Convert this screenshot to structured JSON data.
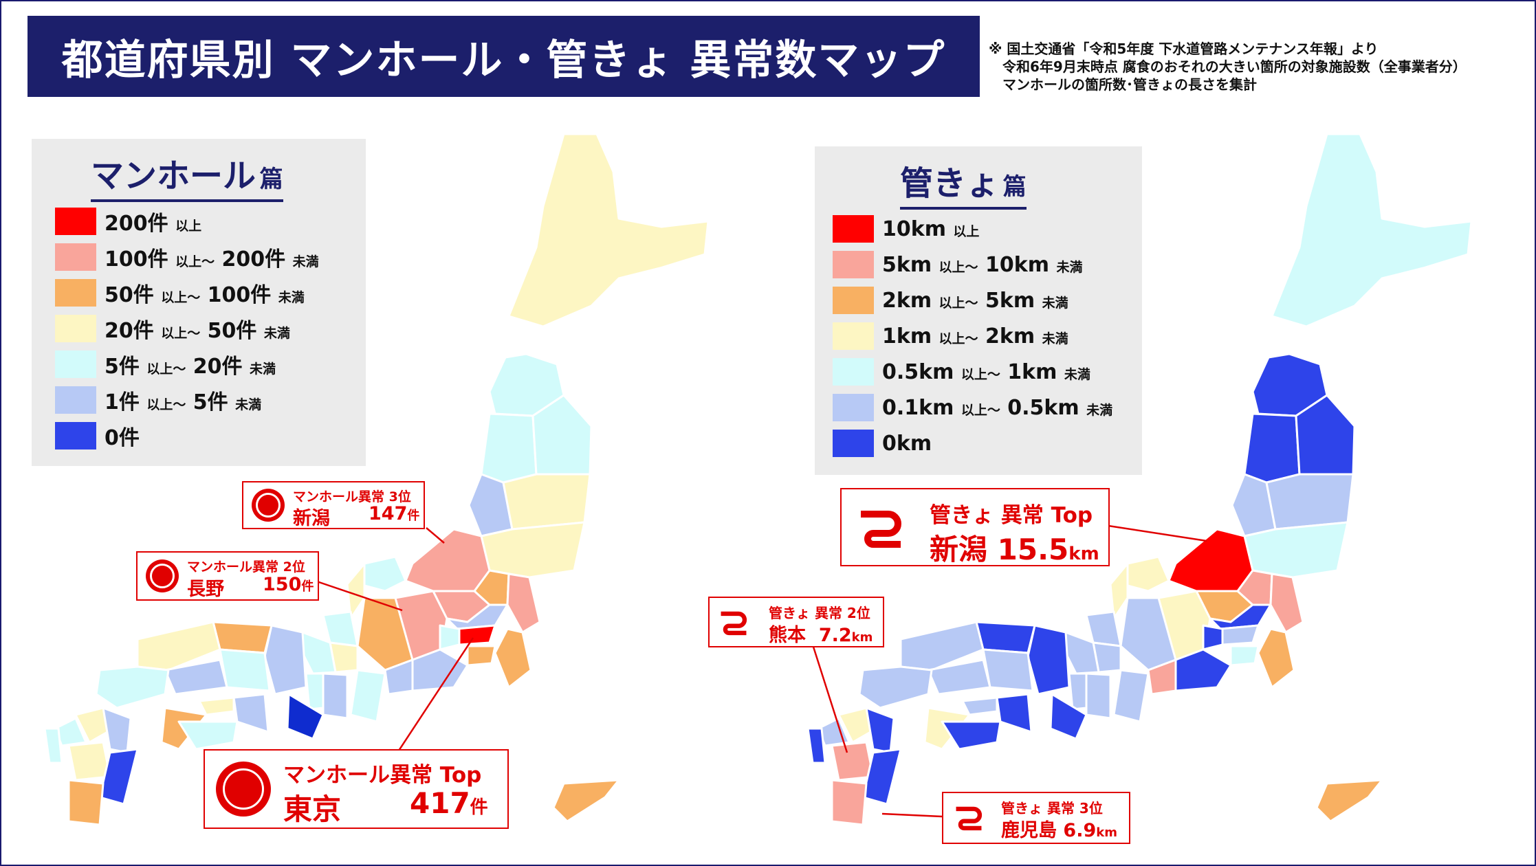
{
  "title": "都道府県別 マンホール・管きょ 異常数マップ",
  "note": [
    "※ 国土交通省「令和5年度 下水道管路メンテナンス年報」より",
    "令和6年9月末時点 腐食のおそれの大きい箇所の対象施設数（全事業者分）",
    "マンホールの箇所数･管きょの長さを集計"
  ],
  "colors": {
    "navy": "#1c1f6b",
    "red": "#ff0000",
    "pink": "#f9a59b",
    "orange": "#f8b062",
    "cream": "#fdf6c3",
    "cyan": "#d2fbfb",
    "lightblue": "#b7c9f5",
    "blue": "#2e44ea"
  },
  "manhole_legend": {
    "title": "マンホール",
    "title_suffix": "篇",
    "items": [
      {
        "main": "200件",
        "mid": "以上",
        "main2": "",
        "tail": "",
        "color": "#ff0000"
      },
      {
        "main": "100件",
        "mid": "以上～",
        "main2": "200件",
        "tail": "未満",
        "color": "#f9a59b"
      },
      {
        "main": "50件",
        "mid": "以上～",
        "main2": "100件",
        "tail": "未満",
        "color": "#f8b062"
      },
      {
        "main": "20件",
        "mid": "以上～",
        "main2": "50件",
        "tail": "未満",
        "color": "#fdf6c3"
      },
      {
        "main": "5件",
        "mid": "以上～",
        "main2": "20件",
        "tail": "未満",
        "color": "#d2fbfb"
      },
      {
        "main": "1件",
        "mid": "以上～",
        "main2": "5件",
        "tail": "未満",
        "color": "#b7c9f5"
      },
      {
        "main": "0件",
        "mid": "",
        "main2": "",
        "tail": "",
        "color": "#2e44ea"
      }
    ]
  },
  "pipe_legend": {
    "title": "管きょ",
    "title_suffix": "篇",
    "items": [
      {
        "main": "10km",
        "mid": "以上",
        "main2": "",
        "tail": "",
        "color": "#ff0000"
      },
      {
        "main": "5km",
        "mid": "以上～",
        "main2": "10km",
        "tail": "未満",
        "color": "#f9a59b"
      },
      {
        "main": "2km",
        "mid": "以上～",
        "main2": "5km",
        "tail": "未満",
        "color": "#f8b062"
      },
      {
        "main": "1km",
        "mid": "以上～",
        "main2": "2km",
        "tail": "未満",
        "color": "#fdf6c3"
      },
      {
        "main": "0.5km",
        "mid": "以上～",
        "main2": "1km",
        "tail": "未満",
        "color": "#d2fbfb"
      },
      {
        "main": "0.1km",
        "mid": "以上～",
        "main2": "0.5km",
        "tail": "未満",
        "color": "#b7c9f5"
      },
      {
        "main": "0km",
        "mid": "",
        "main2": "",
        "tail": "",
        "color": "#2e44ea"
      }
    ]
  },
  "manhole_callouts": {
    "third": {
      "rank": "マンホール異常 3位",
      "pref": "新潟",
      "value": "147",
      "unit": "件"
    },
    "second": {
      "rank": "マンホール異常 2位",
      "pref": "長野",
      "value": "150",
      "unit": "件"
    },
    "top": {
      "rank": "マンホール異常 Top",
      "pref": "東京",
      "value": "417",
      "unit": "件"
    }
  },
  "pipe_callouts": {
    "top": {
      "rank": "管きょ 異常 Top",
      "pref": "新潟",
      "value": "15.5",
      "unit": "km"
    },
    "second": {
      "rank": "管きょ 異常 2位",
      "pref": "熊本",
      "value": "7.2",
      "unit": "km"
    },
    "third": {
      "rank": "管きょ 異常 3位",
      "pref": "鹿児島",
      "value": "6.9",
      "unit": "km"
    }
  }
}
